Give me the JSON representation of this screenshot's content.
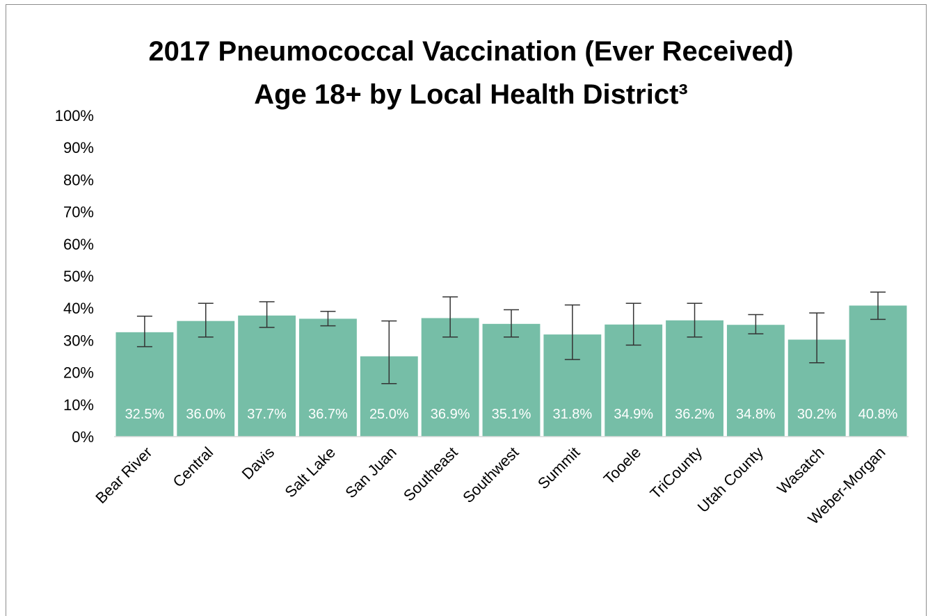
{
  "chart_data": {
    "type": "bar",
    "title": [
      "2017 Pneumococcal Vaccination (Ever Received)",
      "Age 18+ by Local Health District³"
    ],
    "categories": [
      "Bear River",
      "Central",
      "Davis",
      "Salt Lake",
      "San Juan",
      "Southeast",
      "Southwest",
      "Summit",
      "Tooele",
      "TriCounty",
      "Utah County",
      "Wasatch",
      "Weber-Morgan"
    ],
    "values": [
      32.5,
      36.0,
      37.7,
      36.7,
      25.0,
      36.9,
      35.1,
      31.8,
      34.9,
      36.2,
      34.8,
      30.2,
      40.8
    ],
    "data_labels": [
      "32.5%",
      "36.0%",
      "37.7%",
      "36.7%",
      "25.0%",
      "36.9%",
      "35.1%",
      "31.8%",
      "34.9%",
      "36.2%",
      "34.8%",
      "30.2%",
      "40.8%"
    ],
    "error_low": [
      28.0,
      31.0,
      34.0,
      34.5,
      16.5,
      31.0,
      31.0,
      24.0,
      28.5,
      31.0,
      32.0,
      23.0,
      36.5
    ],
    "error_high": [
      37.5,
      41.5,
      42.0,
      39.0,
      36.0,
      43.5,
      39.5,
      41.0,
      41.5,
      41.5,
      38.0,
      38.5,
      45.0
    ],
    "ylim": [
      0,
      100
    ],
    "yticks": [
      "0%",
      "10%",
      "20%",
      "30%",
      "40%",
      "50%",
      "60%",
      "70%",
      "80%",
      "90%",
      "100%"
    ],
    "xlabel": "",
    "ylabel": "",
    "grid": false,
    "legend": "none",
    "bar_color": "#76bea7",
    "error_bar_color": "#333333"
  }
}
